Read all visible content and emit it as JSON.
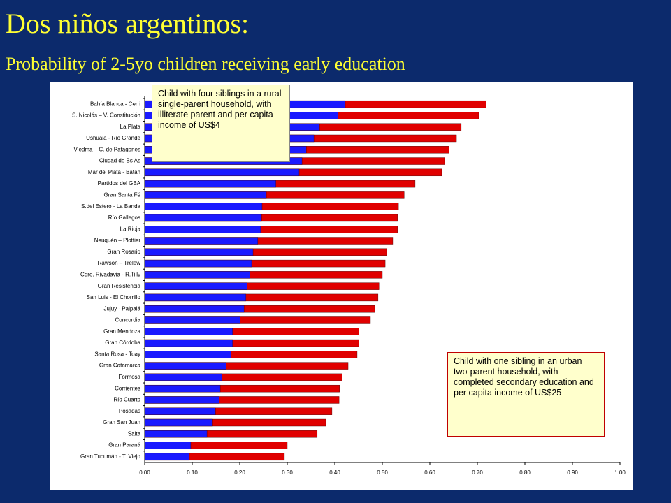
{
  "chart_data": {
    "type": "bar",
    "title": "Dos niños argentinos:",
    "subtitle": "Probability of 2-5yo children receiving early education",
    "categories": [
      "Bahía Blanca - Cerri",
      "S. Nicolás – V. Constitución",
      "La Plata",
      "Ushuaia - Río Grande",
      "Viedma – C. de Patagones",
      "Ciudad de Bs As",
      "Mar del Plata - Batán",
      "Partidos del GBA",
      "Gran Santa Fé",
      "S.del Estero - La Banda",
      "Río Gallegos",
      "La Rioja",
      "Neuquén – Plottier",
      "Gran Rosario",
      "Rawson – Trelew",
      "Cdro. Rivadavia - R.Tilly",
      "Gran Resistencia",
      "San Luis - El Chorrillo",
      "Jujuy - Palpalá",
      "Concordia",
      "Gran Mendoza",
      "Gran Córdoba",
      "Santa Rosa - Toay",
      "Gran Catamarca",
      "Formosa",
      "Corrientes",
      "Río Cuarto",
      "Posadas",
      "Gran San Juan",
      "Salta",
      "Gran Paraná",
      "Gran Tucumán - T. Viejo"
    ],
    "series": [
      {
        "name": "Child with one sibling in an urban two-parent household, with completed secondary education and per capita income of US$25",
        "color": "#e00000",
        "values": [
          0.718,
          0.703,
          0.666,
          0.656,
          0.64,
          0.631,
          0.625,
          0.569,
          0.546,
          0.534,
          0.532,
          0.532,
          0.522,
          0.509,
          0.506,
          0.5,
          0.493,
          0.491,
          0.484,
          0.475,
          0.451,
          0.451,
          0.447,
          0.428,
          0.415,
          0.41,
          0.409,
          0.394,
          0.381,
          0.363,
          0.3,
          0.294
        ]
      },
      {
        "name": "Child with four siblings in a rural single-parent household, with illiterate parent and per capita income of US$4",
        "color": "#1a1aff",
        "values": [
          0.422,
          0.407,
          0.368,
          0.356,
          0.34,
          0.331,
          0.325,
          0.276,
          0.256,
          0.247,
          0.246,
          0.244,
          0.238,
          0.228,
          0.225,
          0.221,
          0.215,
          0.213,
          0.209,
          0.201,
          0.185,
          0.185,
          0.182,
          0.171,
          0.162,
          0.159,
          0.157,
          0.149,
          0.143,
          0.131,
          0.097,
          0.094
        ]
      }
    ],
    "xlim": [
      0,
      1
    ],
    "xticks": [
      {
        "value": 0,
        "label": "0.00"
      },
      {
        "value": 0.1,
        "label": "0.10"
      },
      {
        "value": 0.2,
        "label": "0.20"
      },
      {
        "value": 0.3,
        "label": "0.30"
      },
      {
        "value": 0.4,
        "label": "0.40"
      },
      {
        "value": 0.5,
        "label": "0.50"
      },
      {
        "value": 0.6,
        "label": "0.60"
      },
      {
        "value": 0.7,
        "label": "0.70"
      },
      {
        "value": 0.8,
        "label": "0.80"
      },
      {
        "value": 0.9,
        "label": "0.90"
      },
      {
        "value": 1,
        "label": "1.00"
      }
    ]
  }
}
